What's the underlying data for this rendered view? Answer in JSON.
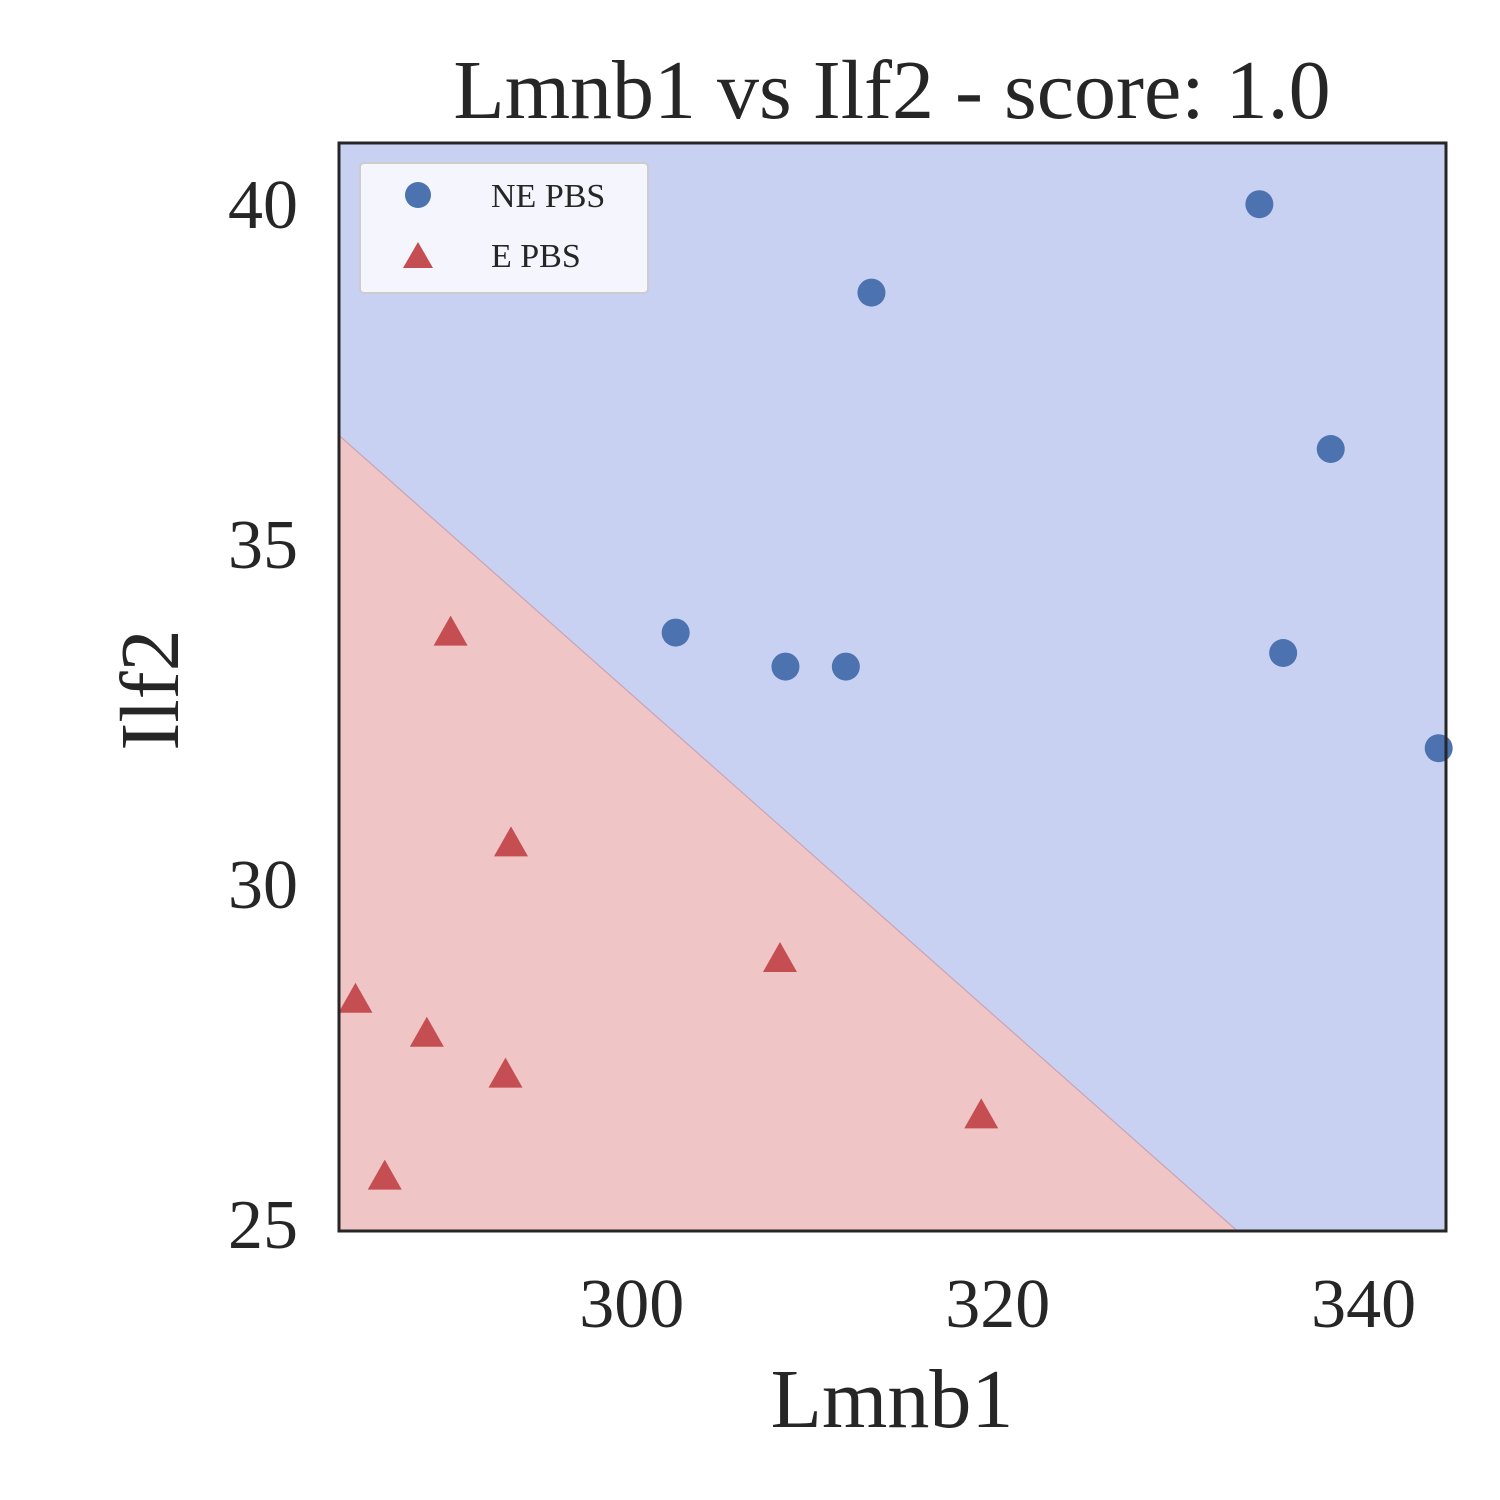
{
  "chart_data": {
    "type": "scatter",
    "title": "Lmnb1 vs Ilf2 - score: 1.0",
    "xlabel": "Lmnb1",
    "ylabel": "Ilf2",
    "xlim": [
      284,
      344.5
    ],
    "ylim": [
      24.9,
      40.9
    ],
    "xticks": [
      300,
      320,
      340
    ],
    "yticks": [
      25,
      30,
      35,
      40
    ],
    "grid": false,
    "legend_position": "top-left",
    "regions": [
      {
        "class": "E PBS",
        "color": "#f0c5c5"
      },
      {
        "class": "NE PBS",
        "color": "#c9d1f2"
      }
    ],
    "decision_boundary": {
      "points": [
        [
          284,
          36.6
        ],
        [
          333.1,
          24.9
        ]
      ]
    },
    "series": [
      {
        "name": "NE PBS",
        "marker": "circle",
        "color": "#4c72b0",
        "points": [
          [
            334.3,
            40.0
          ],
          [
            313.1,
            38.7
          ],
          [
            338.2,
            36.4
          ],
          [
            302.4,
            33.7
          ],
          [
            308.4,
            33.2
          ],
          [
            311.7,
            33.2
          ],
          [
            335.6,
            33.4
          ],
          [
            344.1,
            32.0
          ]
        ]
      },
      {
        "name": "E PBS",
        "marker": "triangle",
        "color": "#c44e52",
        "points": [
          [
            290.1,
            33.7
          ],
          [
            293.4,
            30.6
          ],
          [
            308.1,
            28.9
          ],
          [
            284.9,
            28.3
          ],
          [
            288.8,
            27.8
          ],
          [
            293.1,
            27.2
          ],
          [
            319.1,
            26.6
          ],
          [
            286.5,
            25.7
          ]
        ]
      }
    ]
  }
}
